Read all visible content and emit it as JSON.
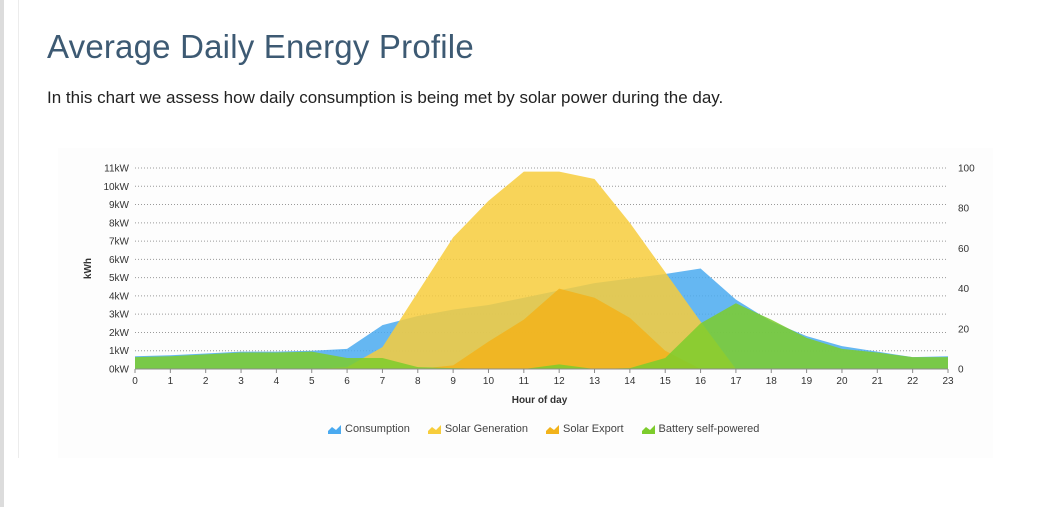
{
  "page": {
    "title": "Average Daily Energy Profile",
    "subtitle": "In this chart we assess how daily consumption is being met by solar power during the day."
  },
  "chart_data": {
    "type": "area",
    "x": [
      0,
      1,
      2,
      3,
      4,
      5,
      6,
      7,
      8,
      9,
      10,
      11,
      12,
      13,
      14,
      15,
      16,
      17,
      18,
      19,
      20,
      21,
      22,
      23
    ],
    "xlabel": "Hour of day",
    "ylabel": "kWh",
    "ylim": [
      0,
      11
    ],
    "y_ticks": [
      "0kW",
      "1kW",
      "2kW",
      "3kW",
      "4kW",
      "5kW",
      "6kW",
      "7kW",
      "8kW",
      "9kW",
      "10kW",
      "11kW"
    ],
    "y2lim": [
      0,
      100
    ],
    "y2_ticks": [
      "0",
      "20",
      "40",
      "60",
      "80",
      "100"
    ],
    "grid": true,
    "legend_position": "bottom",
    "series": [
      {
        "name": "Consumption",
        "color": "#4aaaf0",
        "values": [
          0.7,
          0.75,
          0.85,
          0.95,
          0.95,
          1.0,
          1.1,
          2.4,
          2.9,
          3.25,
          3.5,
          3.9,
          4.3,
          4.7,
          4.95,
          5.2,
          5.5,
          3.8,
          2.6,
          1.8,
          1.25,
          0.95,
          0.65,
          0.7
        ]
      },
      {
        "name": "Solar Generation",
        "color": "#f7cd3c",
        "values": [
          0,
          0,
          0,
          0,
          0,
          0,
          0.1,
          1.2,
          4.2,
          7.2,
          9.2,
          10.8,
          10.8,
          10.4,
          8.0,
          5.3,
          2.6,
          0,
          0,
          0,
          0,
          0,
          0,
          0
        ]
      },
      {
        "name": "Solar Export",
        "color": "#f2b31b",
        "values": [
          0,
          0,
          0,
          0,
          0,
          0,
          0,
          0,
          0,
          0.2,
          1.5,
          2.7,
          4.4,
          3.9,
          2.8,
          1.0,
          0,
          0,
          0,
          0,
          0,
          0,
          0,
          0
        ]
      },
      {
        "name": "Battery self-powered",
        "color": "#7dcc2c",
        "values": [
          0.65,
          0.7,
          0.8,
          0.9,
          0.9,
          0.95,
          0.6,
          0.6,
          0.1,
          0.05,
          0,
          0,
          0.25,
          0,
          0.05,
          0.6,
          2.5,
          3.6,
          2.7,
          1.7,
          1.1,
          0.9,
          0.65,
          0.65
        ]
      }
    ]
  }
}
